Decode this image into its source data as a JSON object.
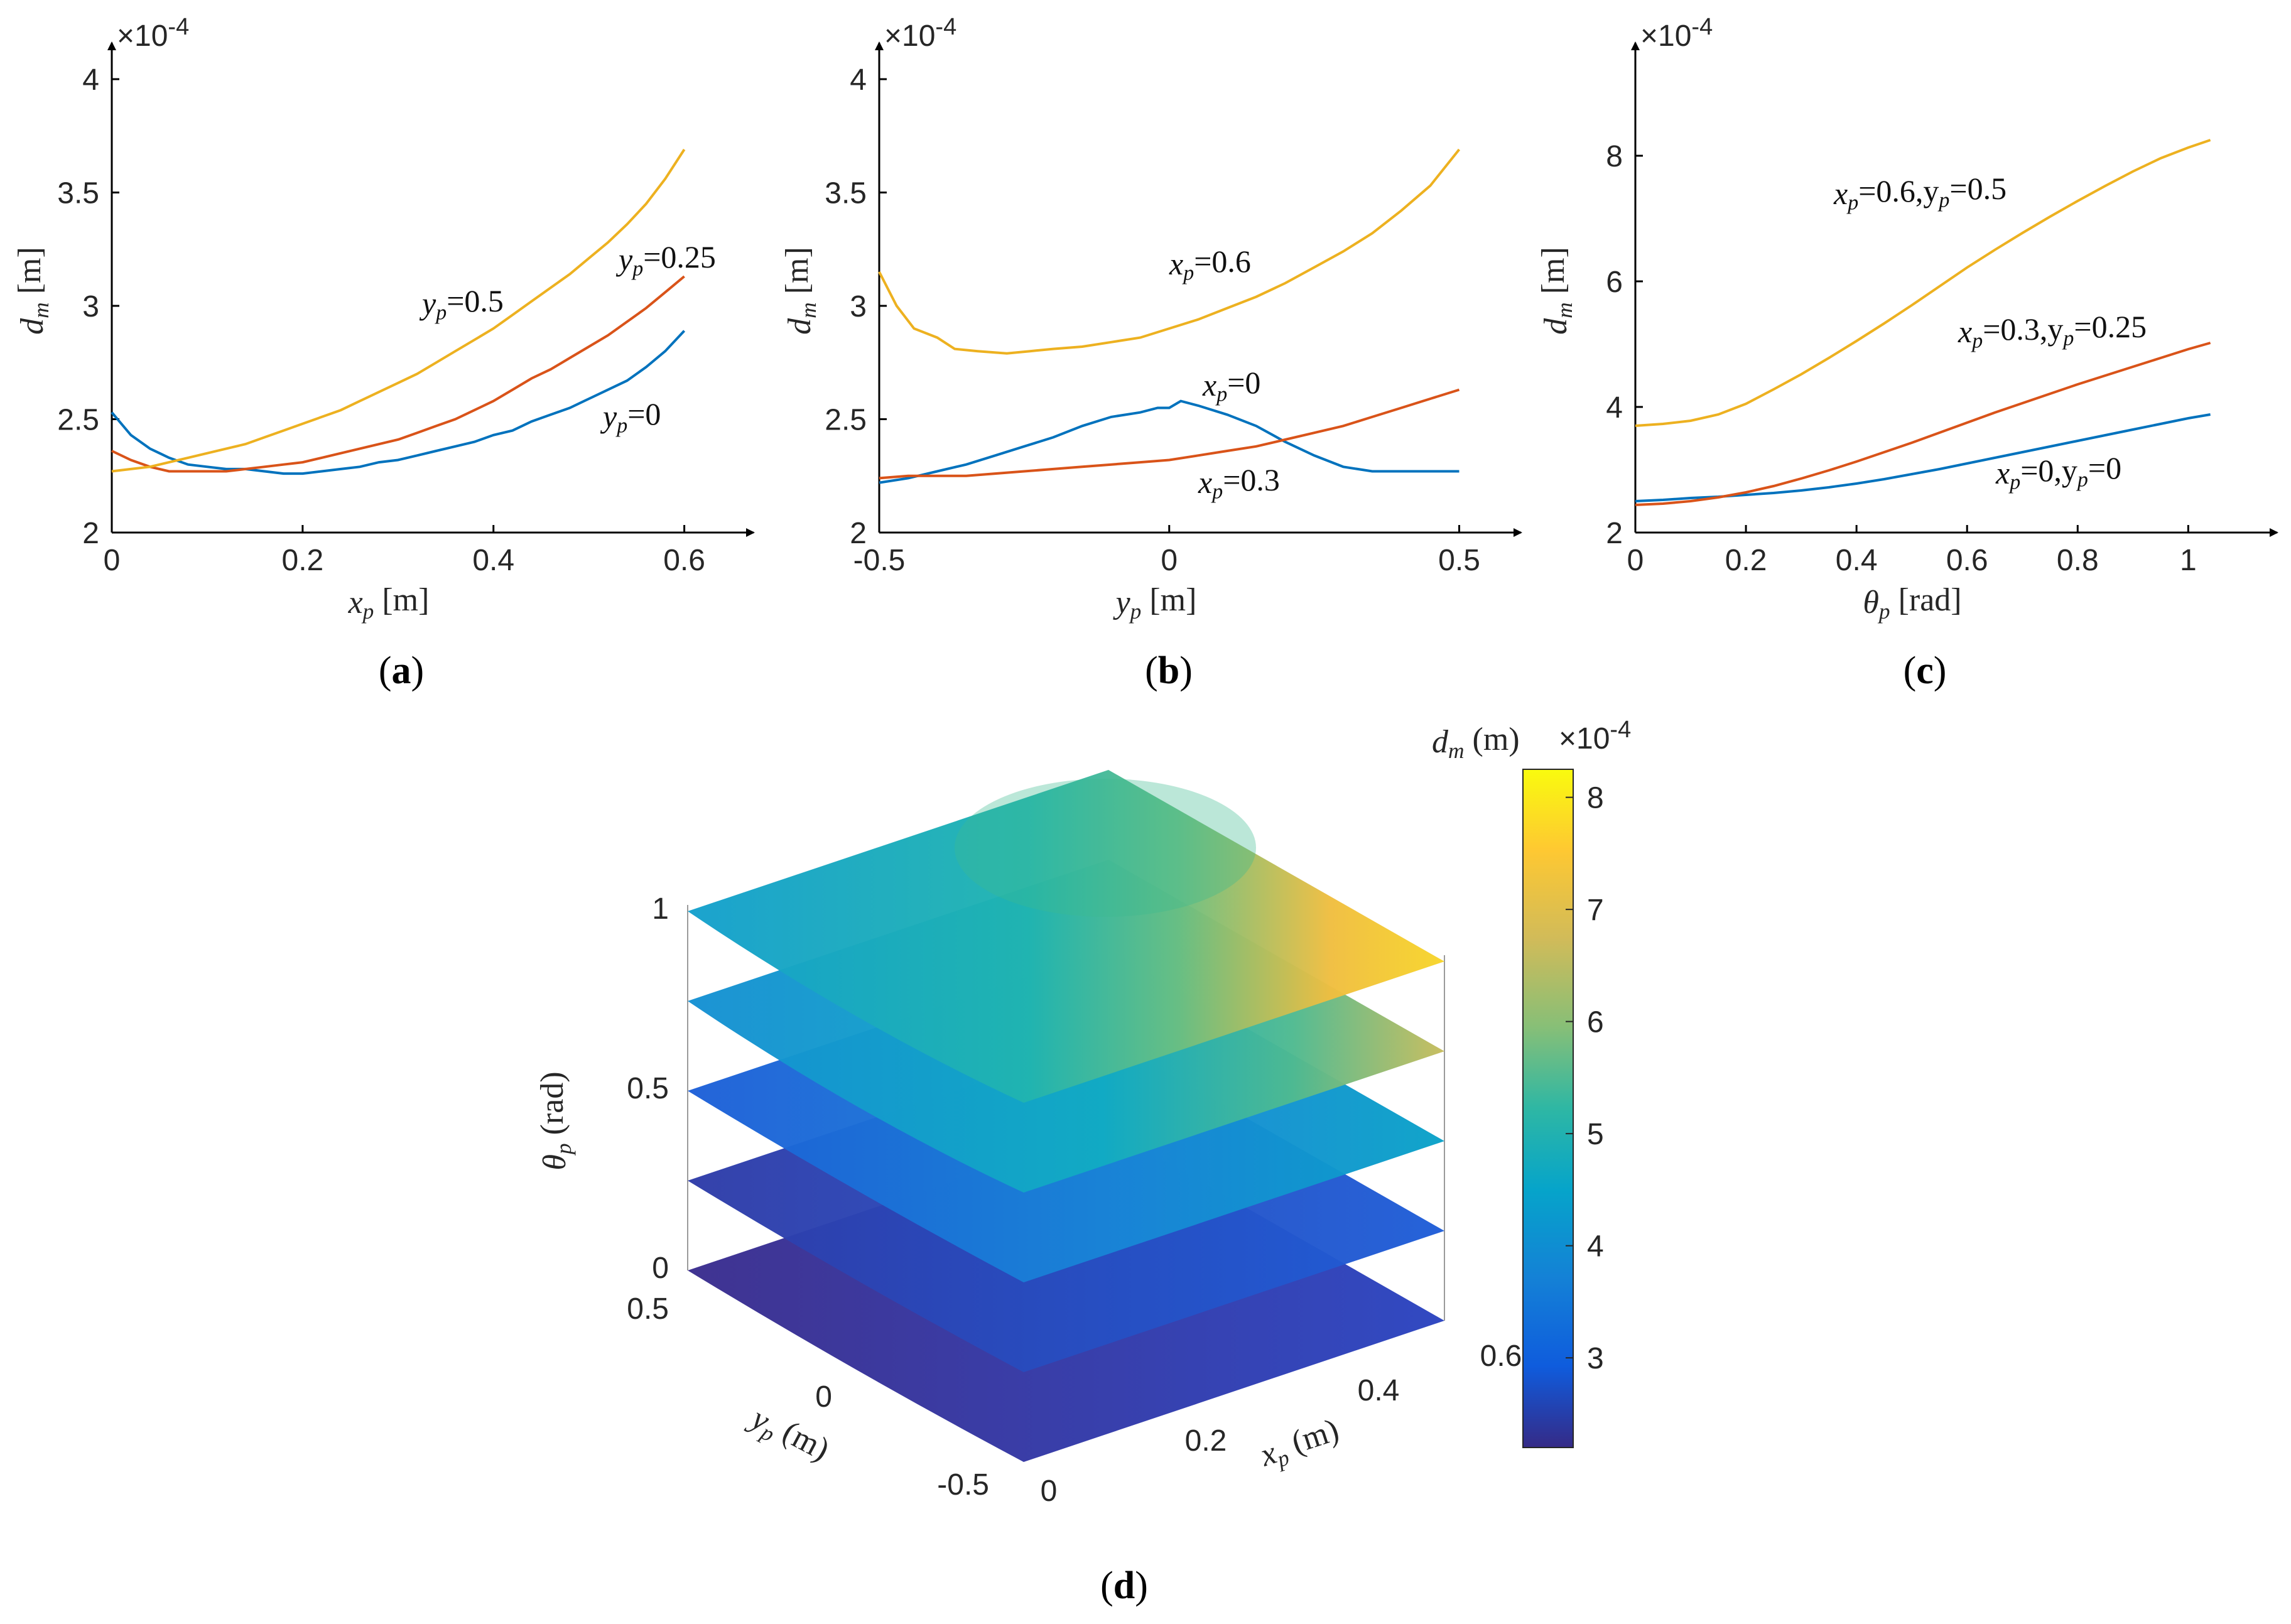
{
  "charts": [
    {
      "id": "a",
      "panel_label_prefix": "(",
      "panel_letter": "a",
      "panel_label_suffix": ")",
      "exponent": "×10",
      "exponent_power": "-4",
      "xlabel_sym": "x",
      "xlabel_sub": "p",
      "xlabel_unit": " [m]",
      "ylabel_sym": "d",
      "ylabel_sub": "m",
      "ylabel_unit": " [m]",
      "xticks": [
        {
          "v": 0,
          "t": "0"
        },
        {
          "v": 0.2,
          "t": "0.2"
        },
        {
          "v": 0.4,
          "t": "0.4"
        },
        {
          "v": 0.6,
          "t": "0.6"
        }
      ],
      "yticks": [
        {
          "v": 2,
          "t": "2"
        },
        {
          "v": 2.5,
          "t": "2.5"
        },
        {
          "v": 3,
          "t": "3"
        },
        {
          "v": 3.5,
          "t": "3.5"
        },
        {
          "v": 4,
          "t": "4"
        }
      ],
      "xlim": [
        0,
        0.62
      ],
      "ylim": [
        2,
        4.05
      ]
    },
    {
      "id": "b",
      "panel_label_prefix": "(",
      "panel_letter": "b",
      "panel_label_suffix": ")",
      "exponent": "×10",
      "exponent_power": "-4",
      "xlabel_sym": "y",
      "xlabel_sub": "p",
      "xlabel_unit": " [m]",
      "ylabel_sym": "d",
      "ylabel_sub": "m",
      "ylabel_unit": " [m]",
      "xticks": [
        {
          "v": -0.5,
          "t": "-0.5"
        },
        {
          "v": 0,
          "t": "0"
        },
        {
          "v": 0.5,
          "t": "0.5"
        }
      ],
      "yticks": [
        {
          "v": 2,
          "t": "2"
        },
        {
          "v": 2.5,
          "t": "2.5"
        },
        {
          "v": 3,
          "t": "3"
        },
        {
          "v": 3.5,
          "t": "3.5"
        },
        {
          "v": 4,
          "t": "4"
        }
      ],
      "xlim": [
        -0.5,
        0.52
      ],
      "ylim": [
        2,
        4.05
      ]
    },
    {
      "id": "c",
      "panel_label_prefix": "(",
      "panel_letter": "c",
      "panel_label_suffix": ")",
      "exponent": "×10",
      "exponent_power": "-4",
      "xlabel_sym": "θ",
      "xlabel_sub": "p",
      "xlabel_unit": " [rad]",
      "ylabel_sym": "d",
      "ylabel_sub": "m",
      "ylabel_unit": " [m]",
      "xticks": [
        {
          "v": 0,
          "t": "0"
        },
        {
          "v": 0.2,
          "t": "0.2"
        },
        {
          "v": 0.4,
          "t": "0.4"
        },
        {
          "v": 0.6,
          "t": "0.6"
        },
        {
          "v": 0.8,
          "t": "0.8"
        },
        {
          "v": 1,
          "t": "1"
        }
      ],
      "yticks": [
        {
          "v": 2,
          "t": "2"
        },
        {
          "v": 4,
          "t": "4"
        },
        {
          "v": 6,
          "t": "6"
        },
        {
          "v": 8,
          "t": "8"
        }
      ],
      "xlim": [
        0,
        1.07
      ],
      "ylim": [
        2,
        9.4
      ]
    },
    {
      "id": "d",
      "panel_label_prefix": "(",
      "panel_letter": "d",
      "panel_label_suffix": ")",
      "theta_label_sym": "θ",
      "theta_label_sub": "p",
      "theta_label_unit": " (rad)",
      "y_label_sym": "y",
      "y_label_sub": "p",
      "y_label_unit": " (m)",
      "x_label_sym": "x",
      "x_label_sub": "p",
      "x_label_unit": " (m)",
      "theta_ticks": [
        "0",
        "0.5",
        "1"
      ],
      "y_ticks": [
        "0.5",
        "0",
        "-0.5"
      ],
      "x_ticks": [
        "0",
        "0.2",
        "0.4",
        "0.6"
      ],
      "colorbar_title_sym": "d",
      "colorbar_title_sub": "m",
      "colorbar_title_unit": " (m)",
      "colorbar_exponent": "×10",
      "colorbar_exponent_power": "-4",
      "colorbar_ticks": [
        "3",
        "4",
        "5",
        "6",
        "7",
        "8"
      ],
      "colorbar_range": [
        2.2,
        8.25
      ]
    }
  ],
  "colors": {
    "blue": "#0072BD",
    "orange": "#D95319",
    "yellow": "#EDB120",
    "parula": [
      "#352A87",
      "#0F5CDD",
      "#1481D6",
      "#06A4CA",
      "#2EB7A4",
      "#87BF77",
      "#D1BB59",
      "#FEC832",
      "#F9FB0E"
    ]
  },
  "chart_data": [
    {
      "type": "line",
      "panel": "a",
      "xlabel": "xp [m]",
      "ylabel": "dm [m]",
      "y_multiplier": "×10^-4",
      "xlim": [
        0,
        0.62
      ],
      "ylim": [
        2,
        4.05
      ],
      "series": [
        {
          "name": "yp=0",
          "label_parts": [
            "y",
            "p",
            "=0"
          ],
          "color": "#0072BD",
          "x": [
            0,
            0.02,
            0.04,
            0.06,
            0.08,
            0.1,
            0.12,
            0.14,
            0.16,
            0.18,
            0.2,
            0.22,
            0.24,
            0.26,
            0.28,
            0.3,
            0.32,
            0.34,
            0.36,
            0.38,
            0.4,
            0.42,
            0.44,
            0.46,
            0.48,
            0.5,
            0.52,
            0.54,
            0.56,
            0.58,
            0.6
          ],
          "y": [
            2.53,
            2.43,
            2.37,
            2.33,
            2.3,
            2.29,
            2.28,
            2.28,
            2.27,
            2.26,
            2.26,
            2.27,
            2.28,
            2.29,
            2.31,
            2.32,
            2.34,
            2.36,
            2.38,
            2.4,
            2.43,
            2.45,
            2.49,
            2.52,
            2.55,
            2.59,
            2.63,
            2.67,
            2.73,
            2.8,
            2.89
          ]
        },
        {
          "name": "yp=0.25",
          "label_parts": [
            "y",
            "p",
            "=0.25"
          ],
          "color": "#D95319",
          "x": [
            0,
            0.02,
            0.04,
            0.06,
            0.08,
            0.1,
            0.12,
            0.14,
            0.16,
            0.18,
            0.2,
            0.22,
            0.24,
            0.26,
            0.28,
            0.3,
            0.32,
            0.34,
            0.36,
            0.38,
            0.4,
            0.42,
            0.44,
            0.46,
            0.48,
            0.5,
            0.52,
            0.54,
            0.56,
            0.58,
            0.6
          ],
          "y": [
            2.36,
            2.32,
            2.29,
            2.27,
            2.27,
            2.27,
            2.27,
            2.28,
            2.29,
            2.3,
            2.31,
            2.33,
            2.35,
            2.37,
            2.39,
            2.41,
            2.44,
            2.47,
            2.5,
            2.54,
            2.58,
            2.63,
            2.68,
            2.72,
            2.77,
            2.82,
            2.87,
            2.93,
            2.99,
            3.06,
            3.13
          ]
        },
        {
          "name": "yp=0.5",
          "label_parts": [
            "y",
            "p",
            "=0.5"
          ],
          "color": "#EDB120",
          "x": [
            0,
            0.02,
            0.04,
            0.06,
            0.08,
            0.1,
            0.12,
            0.14,
            0.16,
            0.18,
            0.2,
            0.22,
            0.24,
            0.26,
            0.28,
            0.3,
            0.32,
            0.34,
            0.36,
            0.38,
            0.4,
            0.42,
            0.44,
            0.46,
            0.48,
            0.5,
            0.52,
            0.54,
            0.56,
            0.58,
            0.6
          ],
          "y": [
            2.27,
            2.28,
            2.29,
            2.31,
            2.33,
            2.35,
            2.37,
            2.39,
            2.42,
            2.45,
            2.48,
            2.51,
            2.54,
            2.58,
            2.62,
            2.66,
            2.7,
            2.75,
            2.8,
            2.85,
            2.9,
            2.96,
            3.02,
            3.08,
            3.14,
            3.21,
            3.28,
            3.36,
            3.45,
            3.56,
            3.69
          ]
        }
      ]
    },
    {
      "type": "line",
      "panel": "b",
      "xlabel": "yp [m]",
      "ylabel": "dm [m]",
      "y_multiplier": "×10^-4",
      "xlim": [
        -0.5,
        0.52
      ],
      "ylim": [
        2,
        4.05
      ],
      "series": [
        {
          "name": "xp=0",
          "label_parts": [
            "x",
            "p",
            "=0"
          ],
          "color": "#0072BD",
          "x": [
            -0.5,
            -0.45,
            -0.4,
            -0.35,
            -0.3,
            -0.25,
            -0.2,
            -0.15,
            -0.1,
            -0.05,
            -0.02,
            0,
            0.02,
            0.05,
            0.1,
            0.15,
            0.2,
            0.25,
            0.3,
            0.35,
            0.4,
            0.45,
            0.5
          ],
          "y": [
            2.22,
            2.24,
            2.27,
            2.3,
            2.34,
            2.38,
            2.42,
            2.47,
            2.51,
            2.53,
            2.55,
            2.55,
            2.58,
            2.56,
            2.52,
            2.47,
            2.4,
            2.34,
            2.29,
            2.27,
            2.27,
            2.27,
            2.27
          ]
        },
        {
          "name": "xp=0.3",
          "label_parts": [
            "x",
            "p",
            "=0.3"
          ],
          "color": "#D95319",
          "x": [
            -0.5,
            -0.45,
            -0.4,
            -0.35,
            -0.3,
            -0.25,
            -0.2,
            -0.15,
            -0.1,
            -0.05,
            0,
            0.05,
            0.1,
            0.15,
            0.2,
            0.25,
            0.3,
            0.35,
            0.4,
            0.45,
            0.5
          ],
          "y": [
            2.24,
            2.25,
            2.25,
            2.25,
            2.26,
            2.27,
            2.28,
            2.29,
            2.3,
            2.31,
            2.32,
            2.34,
            2.36,
            2.38,
            2.41,
            2.44,
            2.47,
            2.51,
            2.55,
            2.59,
            2.63
          ]
        },
        {
          "name": "xp=0.6",
          "label_parts": [
            "x",
            "p",
            "=0.6"
          ],
          "color": "#EDB120",
          "x": [
            -0.5,
            -0.47,
            -0.44,
            -0.4,
            -0.37,
            -0.33,
            -0.28,
            -0.24,
            -0.2,
            -0.15,
            -0.1,
            -0.05,
            0,
            0.05,
            0.1,
            0.15,
            0.2,
            0.25,
            0.3,
            0.35,
            0.4,
            0.45,
            0.5
          ],
          "y": [
            3.15,
            3.0,
            2.9,
            2.86,
            2.81,
            2.8,
            2.79,
            2.8,
            2.81,
            2.82,
            2.84,
            2.86,
            2.9,
            2.94,
            2.99,
            3.04,
            3.1,
            3.17,
            3.24,
            3.32,
            3.42,
            3.53,
            3.69
          ]
        }
      ]
    },
    {
      "type": "line",
      "panel": "c",
      "xlabel": "θp [rad]",
      "ylabel": "dm [m]",
      "y_multiplier": "×10^-4",
      "xlim": [
        0,
        1.07
      ],
      "ylim": [
        2,
        9.4
      ],
      "series": [
        {
          "name": "xp=0,yp=0",
          "label_parts": [
            "x",
            "p",
            "=0,y",
            "p",
            "=0"
          ],
          "color": "#0072BD",
          "x": [
            0,
            0.05,
            0.1,
            0.15,
            0.2,
            0.25,
            0.3,
            0.35,
            0.4,
            0.45,
            0.5,
            0.55,
            0.6,
            0.65,
            0.7,
            0.75,
            0.8,
            0.85,
            0.9,
            0.95,
            1.0,
            1.04
          ],
          "y": [
            2.5,
            2.52,
            2.55,
            2.57,
            2.6,
            2.63,
            2.67,
            2.72,
            2.78,
            2.85,
            2.93,
            3.01,
            3.1,
            3.19,
            3.28,
            3.37,
            3.46,
            3.55,
            3.64,
            3.73,
            3.82,
            3.88
          ]
        },
        {
          "name": "xp=0.3,yp=0.25",
          "label_parts": [
            "x",
            "p",
            "=0.3,y",
            "p",
            "=0.25"
          ],
          "color": "#D95319",
          "x": [
            0,
            0.05,
            0.1,
            0.15,
            0.2,
            0.25,
            0.3,
            0.35,
            0.4,
            0.45,
            0.5,
            0.55,
            0.6,
            0.65,
            0.7,
            0.75,
            0.8,
            0.85,
            0.9,
            0.95,
            1.0,
            1.04
          ],
          "y": [
            2.44,
            2.46,
            2.5,
            2.56,
            2.64,
            2.74,
            2.86,
            2.99,
            3.13,
            3.28,
            3.43,
            3.59,
            3.75,
            3.91,
            4.06,
            4.21,
            4.36,
            4.5,
            4.64,
            4.78,
            4.92,
            5.02
          ]
        },
        {
          "name": "xp=0.6,yp=0.5",
          "label_parts": [
            "x",
            "p",
            "=0.6,y",
            "p",
            "=0.5"
          ],
          "color": "#EDB120",
          "x": [
            0,
            0.05,
            0.1,
            0.15,
            0.2,
            0.25,
            0.3,
            0.35,
            0.4,
            0.45,
            0.5,
            0.55,
            0.6,
            0.65,
            0.7,
            0.75,
            0.8,
            0.85,
            0.9,
            0.95,
            1.0,
            1.04
          ],
          "y": [
            3.7,
            3.73,
            3.78,
            3.88,
            4.05,
            4.28,
            4.52,
            4.78,
            5.05,
            5.33,
            5.62,
            5.92,
            6.22,
            6.5,
            6.77,
            7.03,
            7.28,
            7.52,
            7.75,
            7.96,
            8.13,
            8.25
          ]
        }
      ]
    },
    {
      "type": "heatmap",
      "panel": "d",
      "description_axes": [
        "xp (m)",
        "yp (m)",
        "θp (rad)"
      ],
      "theta_slices": [
        0,
        0.25,
        0.5,
        0.75,
        1.0
      ],
      "x_range": [
        0,
        0.6
      ],
      "y_range": [
        -0.5,
        0.5
      ],
      "colorbar_range": [
        2.2,
        8.25
      ],
      "colorbar_multiplier": "×10^-4",
      "slice_min_max": [
        [
          2.3,
          2.7
        ],
        [
          2.5,
          3.4
        ],
        [
          3.1,
          4.6
        ],
        [
          3.7,
          6.5
        ],
        [
          3.7,
          8.2
        ]
      ]
    }
  ]
}
